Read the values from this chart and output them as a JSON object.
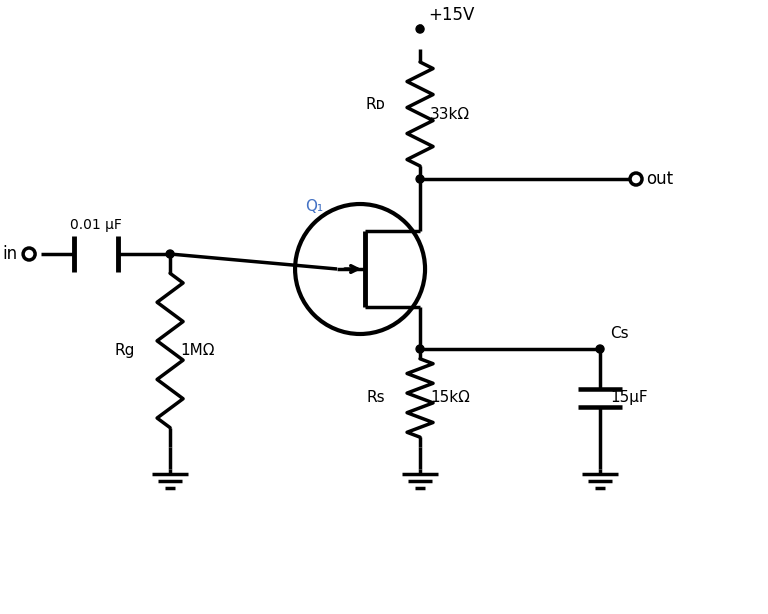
{
  "bg_color": "#ffffff",
  "line_color": "#000000",
  "line_width": 2.5,
  "figsize": [
    7.68,
    6.14
  ],
  "dpi": 100,
  "text_color": "#000000",
  "blue_text": "#4472c4",
  "components": {
    "vdd_label": "+15V",
    "rd_label": "Rᴅ",
    "rd_value": "33kΩ",
    "q1_label": "Q₁",
    "cap_label": "0.01 μF",
    "rg_label": "Rg",
    "rg_value": "1MΩ",
    "rs_label": "Rs",
    "rs_value": "15kΩ",
    "cs_label": "Cs",
    "cs_value": "15μF",
    "in_label": "in",
    "out_label": "out"
  }
}
